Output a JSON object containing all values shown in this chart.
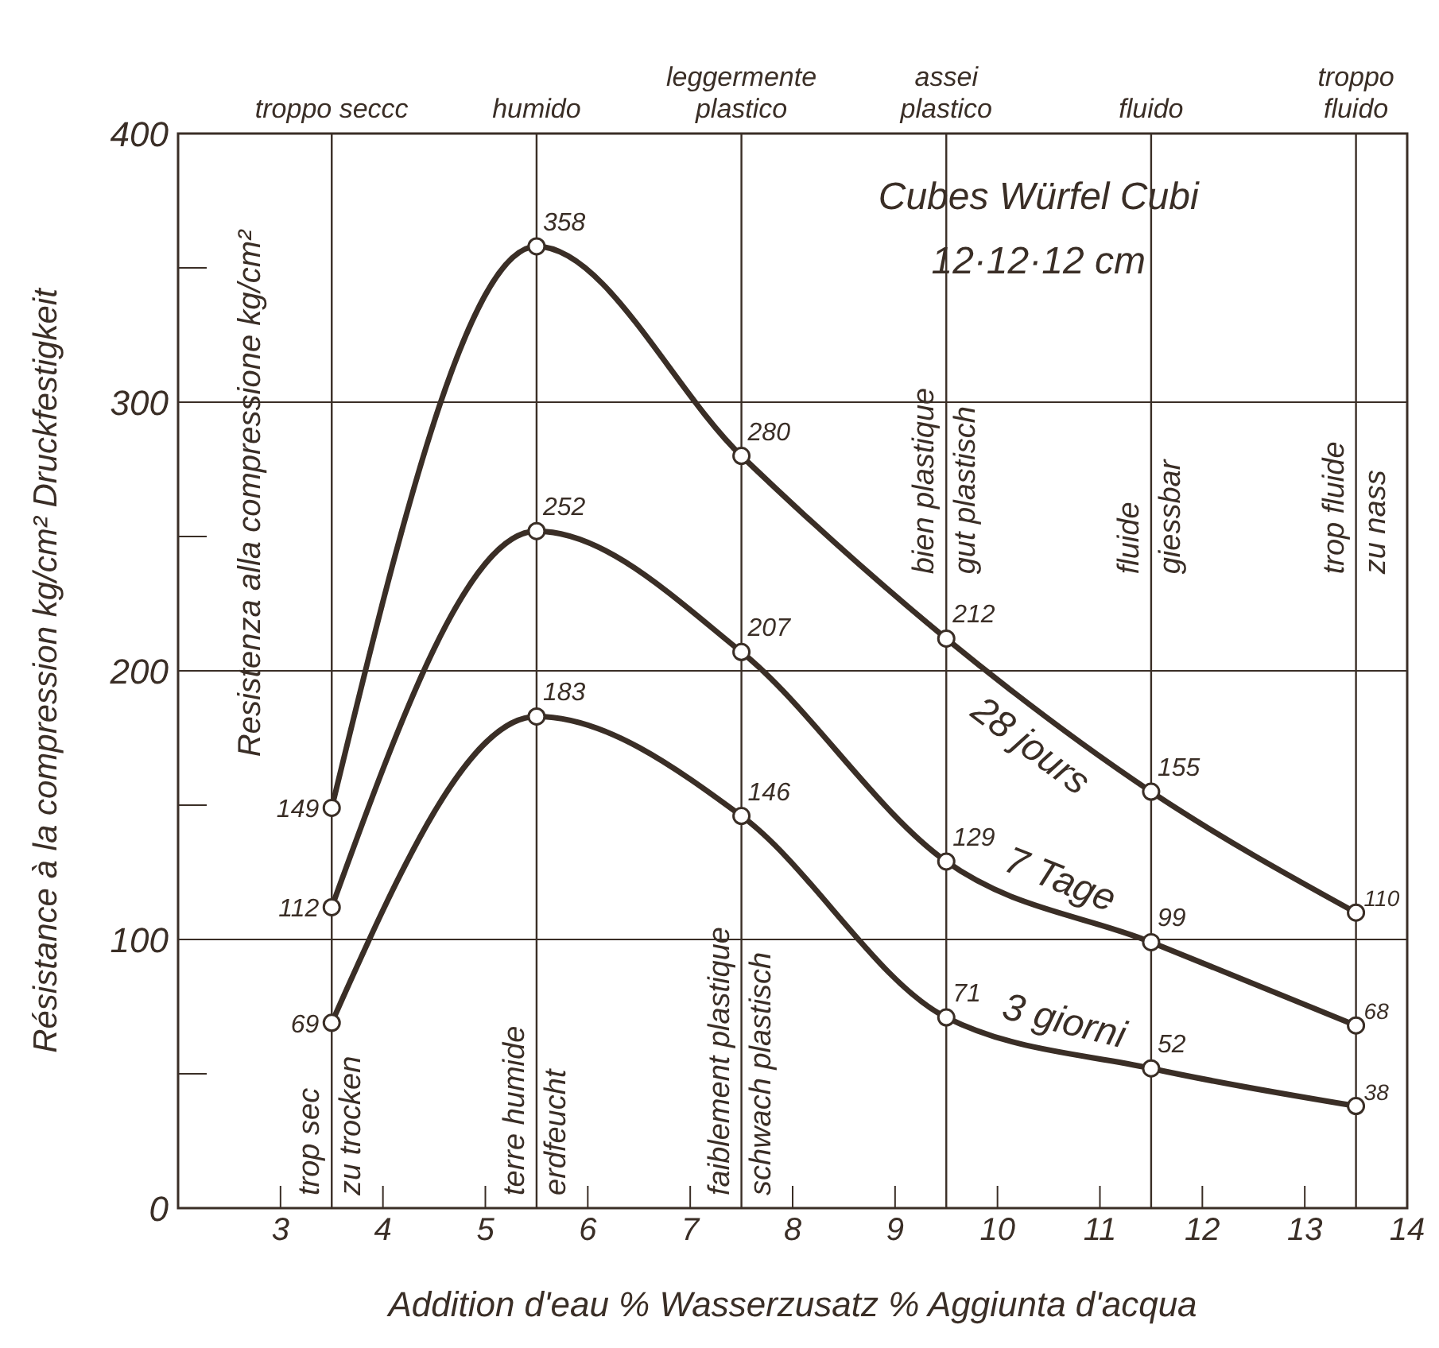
{
  "chart_data": {
    "type": "line",
    "x": [
      3.5,
      5.5,
      7.5,
      9.5,
      11.5,
      13.5
    ],
    "series": [
      {
        "name": "28 jours",
        "color": "#3a2e26",
        "values": [
          149,
          358,
          280,
          212,
          155,
          110
        ]
      },
      {
        "name": "7 Tage",
        "color": "#3a2e26",
        "values": [
          112,
          252,
          207,
          129,
          99,
          68
        ]
      },
      {
        "name": "3 giorni",
        "color": "#3a2e26",
        "values": [
          69,
          183,
          146,
          71,
          52,
          38
        ]
      }
    ],
    "xlim": [
      2,
      14
    ],
    "xticks": [
      3,
      4,
      5,
      6,
      7,
      8,
      9,
      10,
      11,
      12,
      13,
      14
    ],
    "ylim": [
      0,
      400
    ],
    "yticks": [
      0,
      100,
      200,
      300,
      400
    ],
    "xlabel": "Addition d'eau  %  Wasserzusatz  %  Aggiunta d'acqua",
    "ylabel": "Résistance à la compression  kg/cm²  Druckfestigkeit",
    "annotations": [
      "Resistenza alla compressione  kg/cm²",
      "Cubes  Würfel  Cubi",
      "12·12·12 cm",
      "troppo seccc",
      "humido",
      "leggermente plastico",
      "assei plastico",
      "fluido",
      "troppo fluido"
    ],
    "ref_lines": [
      {
        "axis": "x",
        "value": 3.5,
        "label": "trop sec\nzu trocken"
      },
      {
        "axis": "x",
        "value": 5.5,
        "label": "terre humide\nerdfeucht"
      },
      {
        "axis": "x",
        "value": 7.5,
        "label": "faiblement plastique\nschwach plastisch"
      },
      {
        "axis": "x",
        "value": 9.5,
        "label": "bien plastique\ngut plastisch"
      },
      {
        "axis": "x",
        "value": 11.5,
        "label": "fluide\ngiessbar"
      },
      {
        "axis": "x",
        "value": 13.5,
        "label": "trop fluide\nzu nass"
      }
    ],
    "grid": "y",
    "marker": "circle",
    "line_style": "solid",
    "data_labels": true
  }
}
